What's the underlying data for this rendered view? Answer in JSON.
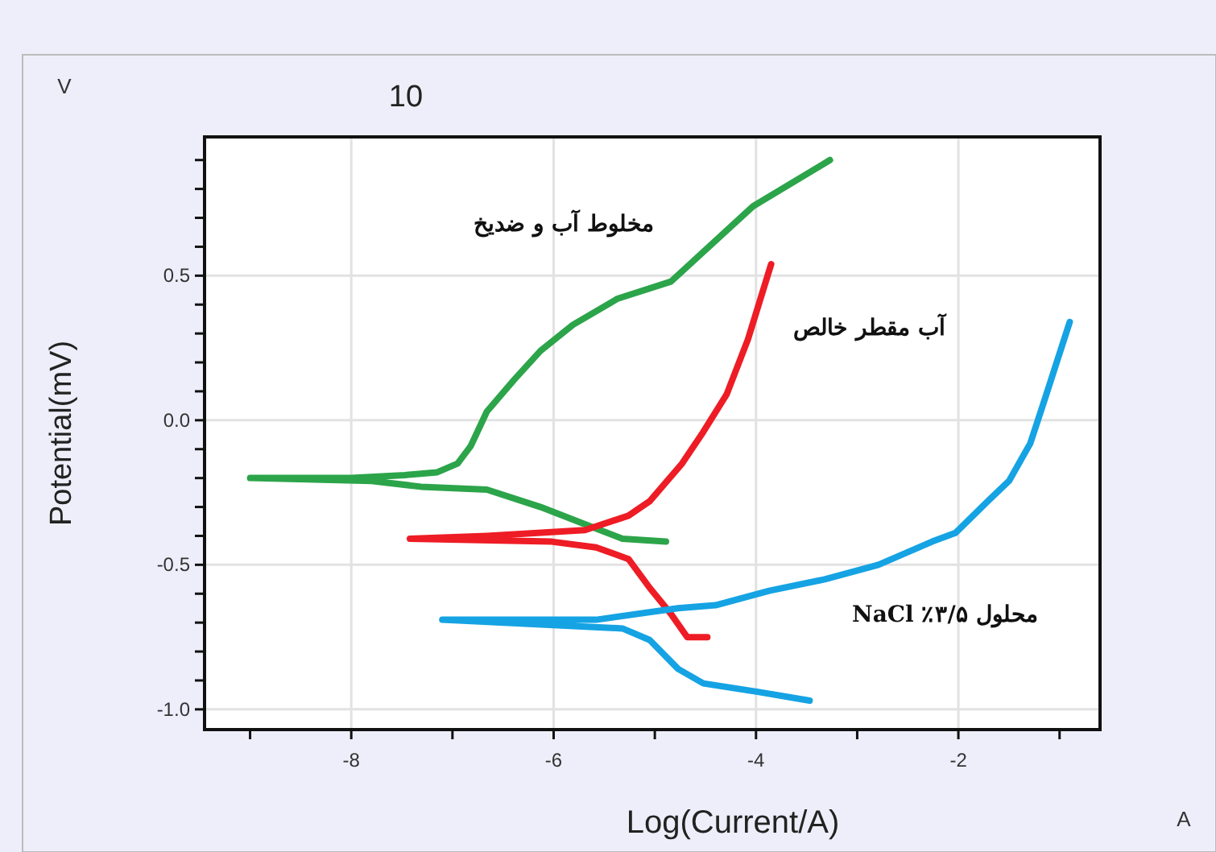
{
  "chart_data": {
    "type": "line",
    "title": "10",
    "xlabel": "Log(Current/A)",
    "ylabel": "Potential(mV)",
    "xlim": [
      -9.45,
      -0.6
    ],
    "ylim": [
      -1.07,
      0.98
    ],
    "xticks": [
      {
        "value": -9,
        "label": null
      },
      -8,
      {
        "value": -7,
        "label": null
      },
      -6,
      {
        "value": -5,
        "label": null
      },
      -4,
      {
        "value": -3,
        "label": null
      },
      -2,
      {
        "value": -1,
        "label": null
      }
    ],
    "yticks": [
      {
        "value": 0.9,
        "label": null
      },
      {
        "value": 0.8,
        "label": null
      },
      {
        "value": 0.7,
        "label": null
      },
      {
        "value": 0.6,
        "label": null
      },
      0.5,
      {
        "value": 0.4,
        "label": null
      },
      {
        "value": 0.3,
        "label": null
      },
      {
        "value": 0.2,
        "label": null
      },
      {
        "value": 0.1,
        "label": null
      },
      {
        "value": 0,
        "label": "0.0"
      },
      {
        "value": -0.1,
        "label": null
      },
      {
        "value": -0.2,
        "label": null
      },
      {
        "value": -0.3,
        "label": null
      },
      {
        "value": -0.4,
        "label": null
      },
      -0.5,
      {
        "value": -0.6,
        "label": null
      },
      {
        "value": -0.7,
        "label": null
      },
      {
        "value": -0.8,
        "label": null
      },
      {
        "value": -0.9,
        "label": null
      },
      {
        "value": -1,
        "label": "-1.0"
      }
    ],
    "grid": true,
    "line_style": "solid",
    "marker": "none",
    "series": [
      {
        "name": "مخلوط آب و ضدیخ",
        "color": "#2ca44a",
        "x": [
          -4.89,
          -5.32,
          -5.69,
          -6.13,
          -6.66,
          -7.31,
          -7.8,
          -9.0,
          -8.0,
          -7.47,
          -7.15,
          -6.95,
          -6.82,
          -6.66,
          -6.39,
          -6.13,
          -5.81,
          -5.37,
          -4.84,
          -4.03,
          -3.27
        ],
        "values": [
          -0.42,
          -0.41,
          -0.36,
          -0.3,
          -0.24,
          -0.23,
          -0.21,
          -0.2,
          -0.2,
          -0.19,
          -0.18,
          -0.15,
          -0.09,
          0.03,
          0.14,
          0.24,
          0.33,
          0.42,
          0.48,
          0.74,
          0.9
        ]
      },
      {
        "name": "آب مقطر خالص",
        "color": "#ee1c25",
        "x": [
          -4.48,
          -4.68,
          -4.84,
          -5.05,
          -5.26,
          -5.58,
          -6.02,
          -7.42,
          -6.66,
          -5.69,
          -5.26,
          -5.05,
          -4.73,
          -4.52,
          -4.29,
          -4.08,
          -3.85
        ],
        "values": [
          -0.75,
          -0.75,
          -0.67,
          -0.58,
          -0.48,
          -0.44,
          -0.42,
          -0.41,
          -0.4,
          -0.38,
          -0.33,
          -0.28,
          -0.15,
          -0.04,
          0.09,
          0.28,
          0.54
        ]
      },
      {
        "name": "محلول ۳/۵٪ NaCl",
        "color": "#15a3e3",
        "x": [
          -3.47,
          -3.97,
          -4.52,
          -4.77,
          -5.05,
          -5.32,
          -7.1,
          -5.58,
          -4.77,
          -4.4,
          -3.87,
          -3.32,
          -2.79,
          -2.26,
          -2.03,
          -1.71,
          -1.5,
          -1.29,
          -1.13,
          -0.9
        ],
        "values": [
          -0.97,
          -0.94,
          -0.91,
          -0.86,
          -0.76,
          -0.72,
          -0.69,
          -0.69,
          -0.65,
          -0.64,
          -0.59,
          -0.55,
          -0.5,
          -0.42,
          -0.39,
          -0.28,
          -0.21,
          -0.08,
          0.09,
          0.34
        ]
      }
    ],
    "annotations": [
      "V",
      "A"
    ]
  }
}
